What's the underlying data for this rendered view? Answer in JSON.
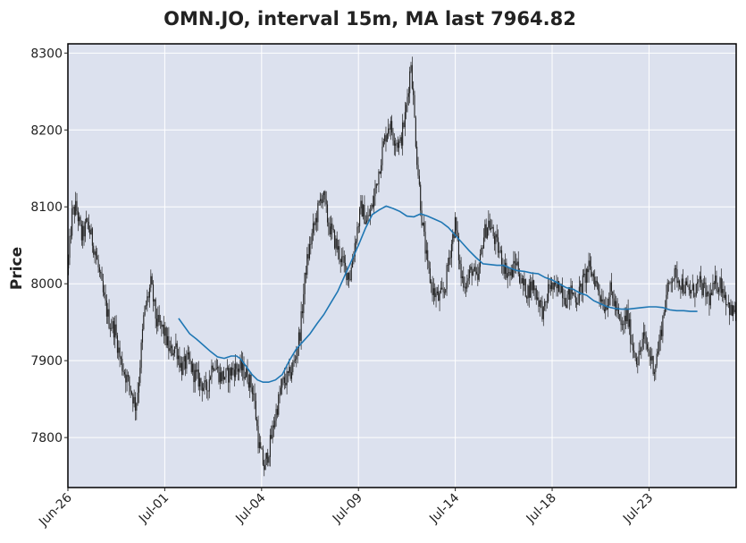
{
  "chart_data": {
    "type": "candlestick",
    "title": "OMN.JO, interval 15m, MA last 7964.82",
    "ylabel": "Price",
    "xlabel": "",
    "ylim": [
      7735,
      8312
    ],
    "yticks": [
      7800,
      7900,
      8000,
      8100,
      8200,
      8300
    ],
    "xticks": [
      "Jun-26",
      "Jul-01",
      "Jul-04",
      "Jul-09",
      "Jul-14",
      "Jul-18",
      "Jul-23"
    ],
    "grid": true,
    "colors": {
      "plot_bg": "#dce1ee",
      "grid": "#ffffff",
      "candle": "#1f1f1f",
      "ma": "#1f77b4",
      "frame": "#000000"
    },
    "price_path": [
      [
        0,
        8020
      ],
      [
        0.3,
        8090
      ],
      [
        0.6,
        8100
      ],
      [
        1.0,
        8060
      ],
      [
        1.4,
        8080
      ],
      [
        2.0,
        8040
      ],
      [
        2.6,
        7980
      ],
      [
        3.0,
        7950
      ],
      [
        3.4,
        7940
      ],
      [
        3.8,
        7900
      ],
      [
        4.2,
        7880
      ],
      [
        4.6,
        7860
      ],
      [
        4.9,
        7840
      ],
      [
        5.1,
        7870
      ],
      [
        5.5,
        7960
      ],
      [
        6.0,
        8000
      ],
      [
        6.4,
        7950
      ],
      [
        6.9,
        7940
      ],
      [
        7.4,
        7910
      ],
      [
        7.8,
        7920
      ],
      [
        8.2,
        7890
      ],
      [
        8.7,
        7900
      ],
      [
        9.2,
        7880
      ],
      [
        9.7,
        7870
      ],
      [
        10.0,
        7860
      ],
      [
        10.5,
        7900
      ],
      [
        11.0,
        7880
      ],
      [
        11.5,
        7880
      ],
      [
        12.0,
        7890
      ],
      [
        12.5,
        7890
      ],
      [
        13.0,
        7880
      ],
      [
        13.4,
        7860
      ],
      [
        13.8,
        7790
      ],
      [
        14.2,
        7760
      ],
      [
        14.6,
        7790
      ],
      [
        15.0,
        7830
      ],
      [
        15.5,
        7870
      ],
      [
        16.0,
        7880
      ],
      [
        16.4,
        7900
      ],
      [
        16.8,
        7940
      ],
      [
        17.2,
        8020
      ],
      [
        17.6,
        8060
      ],
      [
        18.0,
        8090
      ],
      [
        18.4,
        8120
      ],
      [
        18.8,
        8080
      ],
      [
        19.2,
        8060
      ],
      [
        19.6,
        8040
      ],
      [
        20.0,
        8020
      ],
      [
        20.4,
        8010
      ],
      [
        20.8,
        8060
      ],
      [
        21.2,
        8100
      ],
      [
        21.6,
        8080
      ],
      [
        22.0,
        8100
      ],
      [
        22.4,
        8140
      ],
      [
        22.8,
        8180
      ],
      [
        23.2,
        8210
      ],
      [
        23.6,
        8190
      ],
      [
        24.0,
        8180
      ],
      [
        24.4,
        8220
      ],
      [
        24.8,
        8290
      ],
      [
        25.2,
        8170
      ],
      [
        25.6,
        8080
      ],
      [
        26.0,
        8020
      ],
      [
        26.4,
        7990
      ],
      [
        26.8,
        7980
      ],
      [
        27.2,
        7990
      ],
      [
        27.6,
        8040
      ],
      [
        28.0,
        8080
      ],
      [
        28.4,
        8010
      ],
      [
        28.8,
        8000
      ],
      [
        29.2,
        8020
      ],
      [
        29.6,
        8000
      ],
      [
        30.0,
        8060
      ],
      [
        30.4,
        8080
      ],
      [
        30.8,
        8060
      ],
      [
        31.2,
        8040
      ],
      [
        31.6,
        8020
      ],
      [
        32.0,
        8010
      ],
      [
        32.4,
        8030
      ],
      [
        32.8,
        8000
      ],
      [
        33.2,
        7990
      ],
      [
        33.6,
        8000
      ],
      [
        34.0,
        7980
      ],
      [
        34.4,
        7960
      ],
      [
        34.8,
        8000
      ],
      [
        35.2,
        7990
      ],
      [
        35.6,
        8000
      ],
      [
        36.0,
        7980
      ],
      [
        36.4,
        7990
      ],
      [
        36.8,
        7980
      ],
      [
        37.2,
        8000
      ],
      [
        37.6,
        8020
      ],
      [
        38.0,
        8010
      ],
      [
        38.4,
        7990
      ],
      [
        38.8,
        7970
      ],
      [
        39.2,
        7990
      ],
      [
        39.6,
        7970
      ],
      [
        40.0,
        7940
      ],
      [
        40.4,
        7960
      ],
      [
        40.8,
        7920
      ],
      [
        41.2,
        7900
      ],
      [
        41.6,
        7930
      ],
      [
        42.0,
        7910
      ],
      [
        42.4,
        7890
      ],
      [
        42.8,
        7930
      ],
      [
        43.2,
        7980
      ],
      [
        43.6,
        8010
      ],
      [
        44.0,
        8010
      ],
      [
        44.4,
        8000
      ],
      [
        44.8,
        7990
      ],
      [
        45.2,
        7990
      ],
      [
        45.6,
        8000
      ],
      [
        46.0,
        7990
      ],
      [
        46.4,
        7980
      ],
      [
        46.8,
        8000
      ],
      [
        47.2,
        8000
      ],
      [
        47.6,
        7980
      ],
      [
        48.0,
        7960
      ],
      [
        48.3,
        7970
      ]
    ],
    "ma_series": [
      [
        8.0,
        7955
      ],
      [
        8.4,
        7945
      ],
      [
        8.8,
        7935
      ],
      [
        9.3,
        7928
      ],
      [
        9.8,
        7920
      ],
      [
        10.3,
        7912
      ],
      [
        10.8,
        7905
      ],
      [
        11.3,
        7903
      ],
      [
        11.8,
        7906
      ],
      [
        12.2,
        7906
      ],
      [
        12.5,
        7902
      ],
      [
        12.9,
        7892
      ],
      [
        13.3,
        7882
      ],
      [
        13.7,
        7875
      ],
      [
        14.1,
        7872
      ],
      [
        14.5,
        7872
      ],
      [
        15.0,
        7875
      ],
      [
        15.5,
        7882
      ],
      [
        16.0,
        7900
      ],
      [
        16.5,
        7915
      ],
      [
        17.0,
        7925
      ],
      [
        17.5,
        7935
      ],
      [
        18.0,
        7948
      ],
      [
        18.5,
        7960
      ],
      [
        19.0,
        7975
      ],
      [
        19.5,
        7990
      ],
      [
        20.0,
        8010
      ],
      [
        20.5,
        8030
      ],
      [
        21.0,
        8050
      ],
      [
        21.5,
        8072
      ],
      [
        22.0,
        8090
      ],
      [
        22.5,
        8096
      ],
      [
        23.0,
        8101
      ],
      [
        23.5,
        8098
      ],
      [
        24.0,
        8094
      ],
      [
        24.5,
        8088
      ],
      [
        25.0,
        8087
      ],
      [
        25.5,
        8091
      ],
      [
        26.0,
        8088
      ],
      [
        26.5,
        8084
      ],
      [
        27.0,
        8080
      ],
      [
        27.5,
        8073
      ],
      [
        28.0,
        8063
      ],
      [
        28.5,
        8053
      ],
      [
        29.0,
        8043
      ],
      [
        29.5,
        8034
      ],
      [
        30.0,
        8026
      ],
      [
        30.5,
        8025
      ],
      [
        31.0,
        8024
      ],
      [
        31.5,
        8024
      ],
      [
        32.0,
        8020
      ],
      [
        32.5,
        8017
      ],
      [
        33.0,
        8016
      ],
      [
        33.5,
        8014
      ],
      [
        34.0,
        8013
      ],
      [
        34.5,
        8008
      ],
      [
        35.0,
        8005
      ],
      [
        35.5,
        8000
      ],
      [
        36.0,
        7995
      ],
      [
        36.5,
        7993
      ],
      [
        37.0,
        7988
      ],
      [
        37.5,
        7985
      ],
      [
        38.0,
        7978
      ],
      [
        38.5,
        7974
      ],
      [
        39.0,
        7970
      ],
      [
        39.5,
        7968
      ],
      [
        40.0,
        7967
      ],
      [
        40.5,
        7967
      ],
      [
        41.0,
        7968
      ],
      [
        41.5,
        7969
      ],
      [
        42.0,
        7970
      ],
      [
        42.5,
        7970
      ],
      [
        43.0,
        7969
      ],
      [
        43.5,
        7966
      ],
      [
        44.0,
        7965
      ],
      [
        44.5,
        7965
      ],
      [
        45.0,
        7964
      ],
      [
        45.5,
        7964
      ]
    ]
  }
}
